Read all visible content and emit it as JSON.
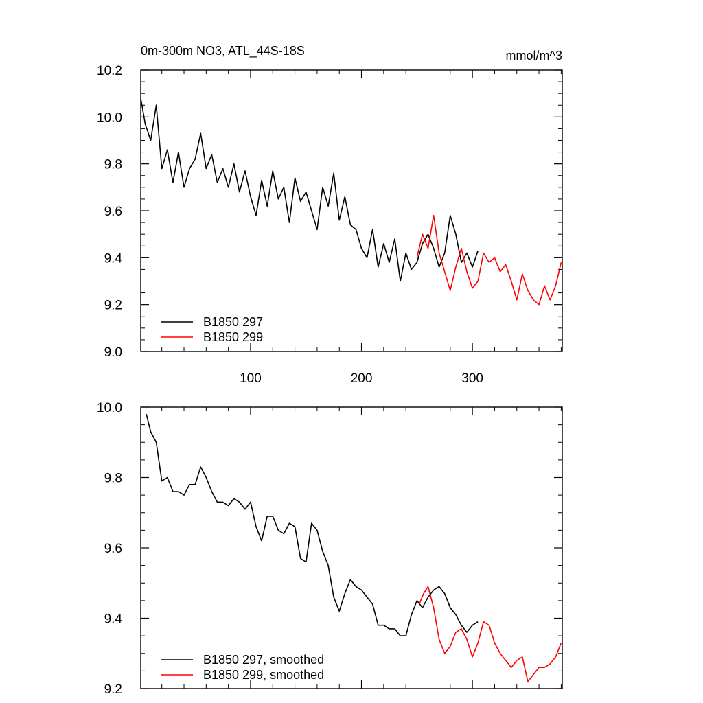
{
  "chart_data": [
    {
      "type": "line",
      "title": "0m-300m NO3, ATL_44S-18S",
      "units": "mmol/m^3",
      "xlabel": "",
      "ylabel": "",
      "xlim": [
        1,
        381
      ],
      "ylim": [
        9.0,
        10.2
      ],
      "xticks": [
        100,
        200,
        300
      ],
      "yticks": [
        "9.0",
        "9.2",
        "9.4",
        "9.6",
        "9.8",
        "10.0",
        "10.2"
      ],
      "legend_position": "bottom-left",
      "series": [
        {
          "name": "B1850 297",
          "color": "#000000",
          "x": [
            1,
            5,
            10,
            15,
            20,
            25,
            30,
            35,
            40,
            45,
            50,
            55,
            60,
            65,
            70,
            75,
            80,
            85,
            90,
            95,
            100,
            105,
            110,
            115,
            120,
            125,
            130,
            135,
            140,
            145,
            150,
            155,
            160,
            165,
            170,
            175,
            180,
            185,
            190,
            195,
            200,
            205,
            210,
            215,
            220,
            225,
            230,
            235,
            240,
            245,
            250,
            255,
            260,
            265,
            270,
            275,
            280,
            285,
            290,
            295,
            300,
            305
          ],
          "y": [
            10.08,
            9.97,
            9.9,
            10.05,
            9.78,
            9.86,
            9.72,
            9.85,
            9.7,
            9.78,
            9.82,
            9.93,
            9.78,
            9.84,
            9.72,
            9.78,
            9.7,
            9.8,
            9.68,
            9.77,
            9.66,
            9.58,
            9.73,
            9.62,
            9.77,
            9.65,
            9.7,
            9.55,
            9.74,
            9.64,
            9.68,
            9.6,
            9.52,
            9.7,
            9.62,
            9.76,
            9.56,
            9.66,
            9.54,
            9.52,
            9.44,
            9.4,
            9.52,
            9.36,
            9.46,
            9.38,
            9.48,
            9.3,
            9.42,
            9.35,
            9.38,
            9.46,
            9.5,
            9.44,
            9.36,
            9.42,
            9.58,
            9.5,
            9.38,
            9.42,
            9.36,
            9.43
          ]
        },
        {
          "name": "B1850 299",
          "color": "#ff0000",
          "x": [
            250,
            255,
            260,
            265,
            270,
            275,
            280,
            285,
            290,
            295,
            300,
            305,
            310,
            315,
            320,
            325,
            330,
            335,
            340,
            345,
            350,
            355,
            360,
            365,
            370,
            375,
            380
          ],
          "y": [
            9.4,
            9.5,
            9.44,
            9.58,
            9.42,
            9.34,
            9.26,
            9.36,
            9.44,
            9.34,
            9.27,
            9.3,
            9.42,
            9.38,
            9.4,
            9.34,
            9.37,
            9.3,
            9.22,
            9.33,
            9.26,
            9.22,
            9.2,
            9.28,
            9.22,
            9.28,
            9.38
          ]
        }
      ]
    },
    {
      "type": "line",
      "title": "",
      "xlabel": "",
      "ylabel": "",
      "xlim": [
        1,
        381
      ],
      "ylim": [
        9.2,
        10.0
      ],
      "xticks": [
        100,
        200,
        300
      ],
      "yticks": [
        "9.2",
        "9.4",
        "9.6",
        "9.8",
        "10.0"
      ],
      "legend_position": "bottom-left",
      "series": [
        {
          "name": "B1850 297, smoothed",
          "color": "#000000",
          "x": [
            6,
            10,
            15,
            20,
            25,
            30,
            35,
            40,
            45,
            50,
            55,
            60,
            65,
            70,
            75,
            80,
            85,
            90,
            95,
            100,
            105,
            110,
            115,
            120,
            125,
            130,
            135,
            140,
            145,
            150,
            155,
            160,
            165,
            170,
            175,
            180,
            185,
            190,
            195,
            200,
            205,
            210,
            215,
            220,
            225,
            230,
            235,
            240,
            245,
            250,
            255,
            260,
            265,
            270,
            275,
            280,
            285,
            290,
            295,
            300,
            305
          ],
          "y": [
            9.98,
            9.93,
            9.9,
            9.79,
            9.8,
            9.76,
            9.76,
            9.75,
            9.78,
            9.78,
            9.83,
            9.8,
            9.76,
            9.73,
            9.73,
            9.72,
            9.74,
            9.73,
            9.71,
            9.73,
            9.66,
            9.62,
            9.69,
            9.69,
            9.65,
            9.64,
            9.67,
            9.66,
            9.57,
            9.56,
            9.67,
            9.65,
            9.59,
            9.55,
            9.46,
            9.42,
            9.47,
            9.51,
            9.49,
            9.48,
            9.46,
            9.44,
            9.38,
            9.38,
            9.37,
            9.37,
            9.35,
            9.35,
            9.41,
            9.45,
            9.43,
            9.46,
            9.48,
            9.49,
            9.47,
            9.43,
            9.41,
            9.38,
            9.36,
            9.38,
            9.39
          ]
        },
        {
          "name": "B1850 299, smoothed",
          "color": "#ff0000",
          "x": [
            252,
            256,
            260,
            265,
            270,
            275,
            280,
            285,
            290,
            295,
            300,
            305,
            310,
            315,
            320,
            325,
            330,
            335,
            340,
            345,
            350,
            355,
            360,
            365,
            370,
            375,
            380
          ],
          "y": [
            9.44,
            9.47,
            9.49,
            9.43,
            9.34,
            9.3,
            9.32,
            9.36,
            9.37,
            9.34,
            9.29,
            9.33,
            9.39,
            9.38,
            9.33,
            9.3,
            9.28,
            9.26,
            9.28,
            9.29,
            9.22,
            9.24,
            9.26,
            9.26,
            9.27,
            9.29,
            9.33
          ]
        }
      ]
    }
  ]
}
